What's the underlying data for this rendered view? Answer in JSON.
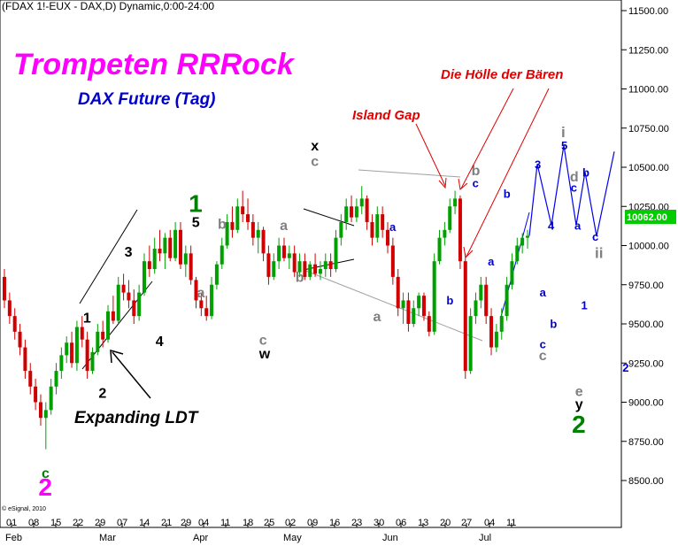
{
  "header": "(FDAX 1!-EUX - DAX,D) Dynamic,0:00-24:00",
  "copyright": "© eSignal, 2010",
  "annotations": {
    "title": "Trompeten RRRock",
    "subtitle": "DAX Future (Tag)",
    "island_gap": "Island Gap",
    "hoelle": "Die Hölle der Bären",
    "ldt": "Expanding LDT"
  },
  "colors": {
    "up_candle": "#00a000",
    "down_candle": "#d00000",
    "price_box": "#00cc00",
    "projection": "#0000ee",
    "grid": "#c8c8c8"
  },
  "chart_data": {
    "type": "candlestick",
    "ylim": [
      8400,
      11650
    ],
    "y_ticks": [
      "11500.00",
      "11250.00",
      "11000.00",
      "10750.00",
      "10500.00",
      "10250.00",
      "10000.00",
      "9750.00",
      "9500.00",
      "9250.00",
      "9000.00",
      "8750.00",
      "8500.00"
    ],
    "x_day_labels": [
      "01",
      "08",
      "15",
      "22",
      "29",
      "07",
      "14",
      "21",
      "29",
      "04",
      "11",
      "18",
      "25",
      "02",
      "09",
      "16",
      "23",
      "30",
      "06",
      "13",
      "20",
      "27",
      "04",
      "11"
    ],
    "months": [
      "Feb",
      "Mar",
      "Apr",
      "May",
      "Jun",
      "Jul"
    ],
    "last_price": "10062.00",
    "ohlc": [
      [
        9800,
        9850,
        9600,
        9650
      ],
      [
        9650,
        9700,
        9500,
        9550
      ],
      [
        9550,
        9600,
        9400,
        9450
      ],
      [
        9450,
        9500,
        9300,
        9350
      ],
      [
        9350,
        9400,
        9150,
        9200
      ],
      [
        9200,
        9250,
        9050,
        9100
      ],
      [
        9100,
        9150,
        8950,
        9000
      ],
      [
        9000,
        9050,
        8850,
        8900
      ],
      [
        8900,
        9000,
        8700,
        8950
      ],
      [
        8950,
        9150,
        8920,
        9100
      ],
      [
        9100,
        9250,
        9050,
        9200
      ],
      [
        9200,
        9350,
        9150,
        9300
      ],
      [
        9300,
        9420,
        9250,
        9380
      ],
      [
        9380,
        9450,
        9220,
        9250
      ],
      [
        9250,
        9520,
        9200,
        9480
      ],
      [
        9480,
        9550,
        9350,
        9400
      ],
      [
        9400,
        9450,
        9150,
        9200
      ],
      [
        9200,
        9350,
        9180,
        9320
      ],
      [
        9320,
        9500,
        9300,
        9450
      ],
      [
        9450,
        9520,
        9350,
        9400
      ],
      [
        9400,
        9620,
        9380,
        9580
      ],
      [
        9580,
        9680,
        9500,
        9520
      ],
      [
        9520,
        9800,
        9500,
        9750
      ],
      [
        9750,
        9820,
        9650,
        9700
      ],
      [
        9700,
        9780,
        9600,
        9650
      ],
      [
        9650,
        9720,
        9500,
        9550
      ],
      [
        9550,
        9750,
        9520,
        9700
      ],
      [
        9700,
        9950,
        9680,
        9900
      ],
      [
        9900,
        10000,
        9800,
        9850
      ],
      [
        9850,
        10050,
        9820,
        9980
      ],
      [
        9980,
        10100,
        9900,
        9950
      ],
      [
        9950,
        10080,
        9850,
        10050
      ],
      [
        10050,
        10100,
        9900,
        9920
      ],
      [
        9920,
        10150,
        9900,
        10100
      ],
      [
        10100,
        10150,
        9850,
        9880
      ],
      [
        9880,
        10000,
        9800,
        9950
      ],
      [
        9950,
        10000,
        9750,
        9780
      ],
      [
        9780,
        9800,
        9600,
        9650
      ],
      [
        9650,
        9700,
        9550,
        9600
      ],
      [
        9600,
        9680,
        9520,
        9550
      ],
      [
        9550,
        9800,
        9530,
        9750
      ],
      [
        9750,
        9900,
        9720,
        9880
      ],
      [
        9880,
        10050,
        9850,
        10000
      ],
      [
        10000,
        10200,
        9980,
        10150
      ],
      [
        10150,
        10250,
        10050,
        10100
      ],
      [
        10100,
        10300,
        10080,
        10250
      ],
      [
        10250,
        10350,
        10150,
        10200
      ],
      [
        10200,
        10300,
        10100,
        10150
      ],
      [
        10150,
        10200,
        10000,
        10050
      ],
      [
        10050,
        10150,
        9950,
        10100
      ],
      [
        10100,
        10120,
        9900,
        9950
      ],
      [
        9950,
        10000,
        9750,
        9800
      ],
      [
        9800,
        9950,
        9780,
        9900
      ],
      [
        9900,
        10050,
        9850,
        10000
      ],
      [
        10000,
        10050,
        9900,
        9920
      ],
      [
        9920,
        10000,
        9850,
        9950
      ],
      [
        9950,
        10000,
        9800,
        9830
      ],
      [
        9830,
        9950,
        9800,
        9900
      ],
      [
        9900,
        9950,
        9780,
        9800
      ],
      [
        9800,
        9900,
        9780,
        9880
      ],
      [
        9880,
        9950,
        9800,
        9820
      ],
      [
        9820,
        9900,
        9780,
        9850
      ],
      [
        9850,
        9950,
        9800,
        9900
      ],
      [
        9900,
        9950,
        9800,
        9850
      ],
      [
        9850,
        10100,
        9830,
        10050
      ],
      [
        10050,
        10200,
        10000,
        10150
      ],
      [
        10150,
        10300,
        10100,
        10250
      ],
      [
        10250,
        10320,
        10150,
        10180
      ],
      [
        10180,
        10300,
        10150,
        10250
      ],
      [
        10250,
        10380,
        10200,
        10300
      ],
      [
        10300,
        10320,
        10100,
        10150
      ],
      [
        10150,
        10200,
        10000,
        10050
      ],
      [
        10050,
        10250,
        10020,
        10200
      ],
      [
        10200,
        10250,
        10050,
        10100
      ],
      [
        10100,
        10150,
        9950,
        10000
      ],
      [
        10000,
        10050,
        9750,
        9800
      ],
      [
        9800,
        9850,
        9550,
        9600
      ],
      [
        9600,
        9700,
        9500,
        9650
      ],
      [
        9650,
        9700,
        9450,
        9500
      ],
      [
        9500,
        9650,
        9480,
        9600
      ],
      [
        9600,
        9700,
        9550,
        9680
      ],
      [
        9680,
        9700,
        9520,
        9550
      ],
      [
        9550,
        9580,
        9420,
        9450
      ],
      [
        9450,
        9950,
        9430,
        9900
      ],
      [
        9900,
        10100,
        9880,
        10050
      ],
      [
        10050,
        10150,
        10000,
        10100
      ],
      [
        10100,
        10300,
        10080,
        10250
      ],
      [
        10250,
        10350,
        10200,
        10300
      ],
      [
        10300,
        10320,
        9850,
        9900
      ],
      [
        9900,
        9950,
        9150,
        9200
      ],
      [
        9200,
        9600,
        9180,
        9550
      ],
      [
        9550,
        9700,
        9500,
        9650
      ],
      [
        9650,
        9800,
        9600,
        9750
      ],
      [
        9750,
        9800,
        9500,
        9550
      ],
      [
        9550,
        9600,
        9300,
        9350
      ],
      [
        9350,
        9500,
        9320,
        9450
      ],
      [
        9450,
        9600,
        9400,
        9550
      ],
      [
        9550,
        9800,
        9520,
        9750
      ],
      [
        9750,
        9950,
        9720,
        9900
      ],
      [
        9900,
        10050,
        9880,
        10000
      ],
      [
        10000,
        10080,
        9950,
        10050
      ],
      [
        10050,
        10100,
        9980,
        10062
      ]
    ],
    "wave_labels": [
      {
        "text": "c",
        "color": "#008000",
        "date_index": 8,
        "price": 8550
      },
      {
        "text": "2",
        "color": "#ff00ff",
        "date_index": 8,
        "price": 8460
      },
      {
        "text": "1",
        "color": "#000000",
        "date_index": 16,
        "price": 9540
      },
      {
        "text": "2",
        "color": "#000000",
        "date_index": 19,
        "price": 9060
      },
      {
        "text": "3",
        "color": "#000000",
        "date_index": 24,
        "price": 9960
      },
      {
        "text": "4",
        "color": "#000000",
        "date_index": 30,
        "price": 9390
      },
      {
        "text": "1",
        "color": "#008000",
        "date_index": 37,
        "price": 10270
      },
      {
        "text": "5",
        "color": "#000000",
        "date_index": 37,
        "price": 10150
      },
      {
        "text": "b",
        "color": "#808080",
        "date_index": 42,
        "price": 10140
      },
      {
        "text": "a",
        "color": "#808080",
        "date_index": 38,
        "price": 9700
      },
      {
        "text": "a",
        "color": "#808080",
        "date_index": 54,
        "price": 10130
      },
      {
        "text": "b",
        "color": "#808080",
        "date_index": 57,
        "price": 9800
      },
      {
        "text": "c",
        "color": "#808080",
        "date_index": 50,
        "price": 9400
      },
      {
        "text": "w",
        "color": "#000000",
        "date_index": 50,
        "price": 9310
      },
      {
        "text": "x",
        "color": "#000000",
        "date_index": 60,
        "price": 10640
      },
      {
        "text": "c",
        "color": "#808080",
        "date_index": 60,
        "price": 10540
      },
      {
        "text": "a",
        "color": "#808080",
        "date_index": 72,
        "price": 9550
      },
      {
        "text": "a",
        "color": "#0000cc",
        "date_index": 75,
        "price": 10120
      },
      {
        "text": "b",
        "color": "#0000cc",
        "date_index": 86,
        "price": 9650
      },
      {
        "text": "b",
        "color": "#808080",
        "date_index": 91,
        "price": 10480
      },
      {
        "text": "c",
        "color": "#0000cc",
        "date_index": 91,
        "price": 10400
      },
      {
        "text": "b",
        "color": "#0000cc",
        "date_index": 97,
        "price": 10330
      },
      {
        "text": "a",
        "color": "#0000cc",
        "date_index": 94,
        "price": 9900
      },
      {
        "text": "a",
        "color": "#0000cc",
        "date_index": 104,
        "price": 9700
      },
      {
        "text": "b",
        "color": "#0000cc",
        "date_index": 106,
        "price": 9500
      },
      {
        "text": "c",
        "color": "#0000cc",
        "date_index": 104,
        "price": 9370
      },
      {
        "text": "c",
        "color": "#808080",
        "date_index": 104,
        "price": 9300
      },
      {
        "text": "d",
        "color": "#808080",
        "date_index": 110,
        "price": 10440
      },
      {
        "text": "c",
        "color": "#0000cc",
        "date_index": 110,
        "price": 10370
      },
      {
        "text": "1",
        "color": "#0000cc",
        "date_index": 112,
        "price": 9620
      },
      {
        "text": "e",
        "color": "#808080",
        "date_index": 111,
        "price": 9070
      },
      {
        "text": "y",
        "color": "#000000",
        "date_index": 111,
        "price": 8990
      },
      {
        "text": "2",
        "color": "#008000",
        "date_index": 111,
        "price": 8860
      },
      {
        "text": "2",
        "color": "#0000cc",
        "date_index": 120,
        "price": 9220
      }
    ],
    "projection_labels": [
      {
        "text": "3",
        "color": "#0000cc",
        "price": 10520
      },
      {
        "text": "4",
        "color": "#0000cc",
        "price": 10130
      },
      {
        "text": "5",
        "color": "#0000cc",
        "price": 10640
      },
      {
        "text": "a",
        "color": "#0000cc",
        "price": 10130
      },
      {
        "text": "b",
        "color": "#0000cc",
        "price": 10470
      },
      {
        "text": "c",
        "color": "#0000cc",
        "price": 10060
      },
      {
        "text": "i",
        "color": "#808080",
        "price": 10720
      },
      {
        "text": "ii",
        "color": "#808080",
        "price": 9950
      }
    ]
  }
}
